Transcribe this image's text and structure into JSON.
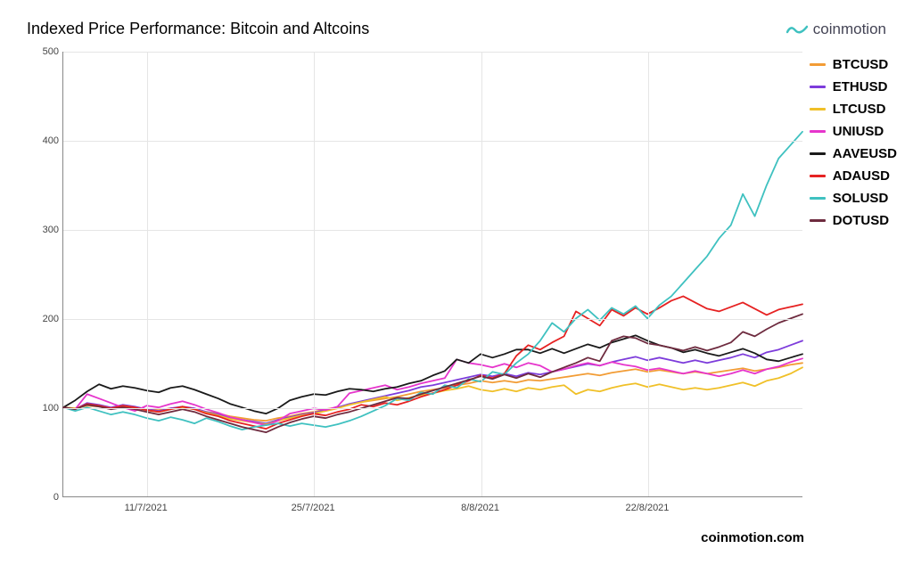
{
  "title": "Indexed Price Performance: Bitcoin and Altcoins",
  "brand": "coinmotion",
  "footer": "coinmotion.com",
  "chart": {
    "type": "line",
    "background_color": "#ffffff",
    "grid_color": "#e5e5e5",
    "axis_color": "#888888",
    "title_fontsize": 18,
    "label_fontsize": 11,
    "legend_fontsize": 15,
    "line_width": 1.8,
    "ylim": [
      0,
      500
    ],
    "yticks": [
      0,
      100,
      200,
      300,
      400,
      500
    ],
    "xlim": [
      0,
      62
    ],
    "x_tick_positions": [
      7,
      21,
      35,
      49
    ],
    "x_tick_labels": [
      "11/7/2021",
      "25/7/2021",
      "8/8/2021",
      "22/8/2021"
    ],
    "series": [
      {
        "name": "BTCUSD",
        "color": "#f29c35",
        "values": [
          100,
          99,
          102,
          101,
          99,
          101,
          100,
          98,
          97,
          99,
          100,
          98,
          95,
          93,
          90,
          88,
          86,
          85,
          88,
          90,
          93,
          95,
          98,
          100,
          103,
          106,
          108,
          110,
          112,
          115,
          118,
          120,
          122,
          125,
          127,
          130,
          128,
          130,
          128,
          131,
          130,
          132,
          134,
          136,
          138,
          136,
          139,
          141,
          143,
          140,
          142,
          140,
          138,
          140,
          138,
          140,
          142,
          144,
          141,
          143,
          145,
          148,
          150
        ]
      },
      {
        "name": "ETHUSD",
        "color": "#7d3cdb",
        "values": [
          100,
          98,
          105,
          103,
          100,
          103,
          101,
          98,
          96,
          99,
          101,
          99,
          95,
          92,
          88,
          86,
          84,
          82,
          86,
          89,
          92,
          94,
          97,
          100,
          104,
          107,
          110,
          113,
          116,
          119,
          123,
          125,
          128,
          131,
          134,
          137,
          135,
          138,
          135,
          139,
          137,
          140,
          143,
          146,
          149,
          147,
          151,
          154,
          157,
          153,
          156,
          153,
          150,
          153,
          150,
          153,
          156,
          160,
          156,
          162,
          165,
          170,
          175
        ]
      },
      {
        "name": "LTCUSD",
        "color": "#f0c028",
        "values": [
          100,
          99,
          103,
          102,
          99,
          102,
          100,
          97,
          95,
          98,
          100,
          98,
          94,
          91,
          87,
          85,
          83,
          81,
          85,
          88,
          91,
          93,
          96,
          99,
          103,
          106,
          109,
          112,
          108,
          111,
          114,
          116,
          119,
          121,
          124,
          120,
          118,
          121,
          118,
          122,
          120,
          123,
          125,
          115,
          120,
          118,
          122,
          125,
          127,
          123,
          126,
          123,
          120,
          122,
          120,
          122,
          125,
          128,
          124,
          130,
          133,
          138,
          145
        ]
      },
      {
        "name": "UNIUSD",
        "color": "#e635cc",
        "values": [
          100,
          98,
          115,
          110,
          105,
          100,
          96,
          102,
          100,
          104,
          107,
          103,
          98,
          94,
          89,
          86,
          83,
          80,
          85,
          93,
          96,
          99,
          97,
          101,
          116,
          119,
          122,
          125,
          120,
          123,
          127,
          130,
          133,
          154,
          150,
          148,
          145,
          149,
          145,
          150,
          147,
          140,
          143,
          147,
          150,
          147,
          151,
          148,
          146,
          142,
          144,
          141,
          138,
          141,
          138,
          135,
          138,
          142,
          138,
          143,
          146,
          151,
          155
        ]
      },
      {
        "name": "AAVEUSD",
        "color": "#1a1a1a",
        "values": [
          100,
          108,
          118,
          126,
          121,
          124,
          122,
          119,
          117,
          122,
          124,
          120,
          115,
          110,
          104,
          100,
          96,
          93,
          99,
          108,
          112,
          115,
          114,
          118,
          121,
          120,
          118,
          121,
          123,
          127,
          130,
          136,
          141,
          154,
          150,
          160,
          156,
          160,
          165,
          165,
          161,
          166,
          161,
          166,
          171,
          167,
          173,
          177,
          181,
          175,
          170,
          167,
          162,
          165,
          161,
          158,
          162,
          166,
          161,
          154,
          152,
          156,
          160
        ]
      },
      {
        "name": "ADAUSD",
        "color": "#e62222",
        "values": [
          100,
          98,
          104,
          102,
          99,
          102,
          100,
          97,
          95,
          98,
          101,
          98,
          93,
          90,
          85,
          82,
          79,
          76,
          82,
          86,
          90,
          93,
          91,
          95,
          98,
          103,
          101,
          105,
          103,
          107,
          112,
          116,
          120,
          125,
          130,
          136,
          133,
          138,
          158,
          170,
          165,
          173,
          180,
          208,
          200,
          192,
          210,
          203,
          212,
          205,
          212,
          220,
          225,
          218,
          211,
          208,
          213,
          218,
          211,
          204,
          210,
          213,
          216
        ]
      },
      {
        "name": "SOLUSD",
        "color": "#3fc1c0",
        "values": [
          100,
          96,
          100,
          96,
          92,
          95,
          92,
          88,
          85,
          89,
          86,
          82,
          88,
          84,
          79,
          75,
          78,
          80,
          82,
          79,
          82,
          80,
          78,
          81,
          85,
          90,
          96,
          102,
          110,
          108,
          117,
          115,
          125,
          122,
          132,
          129,
          140,
          137,
          150,
          160,
          175,
          195,
          185,
          200,
          210,
          198,
          212,
          205,
          214,
          200,
          215,
          225,
          240,
          255,
          270,
          290,
          305,
          340,
          315,
          350,
          380,
          395,
          410
        ]
      },
      {
        "name": "DOTUSD",
        "color": "#6e2b3f",
        "values": [
          100,
          98,
          103,
          101,
          98,
          100,
          98,
          95,
          92,
          95,
          98,
          95,
          90,
          86,
          82,
          78,
          75,
          72,
          78,
          83,
          87,
          90,
          88,
          92,
          95,
          99,
          103,
          107,
          111,
          110,
          115,
          119,
          123,
          127,
          131,
          135,
          132,
          137,
          133,
          138,
          134,
          140,
          145,
          150,
          156,
          152,
          175,
          180,
          178,
          172,
          170,
          167,
          164,
          168,
          164,
          168,
          173,
          185,
          180,
          188,
          195,
          200,
          205
        ]
      }
    ]
  }
}
